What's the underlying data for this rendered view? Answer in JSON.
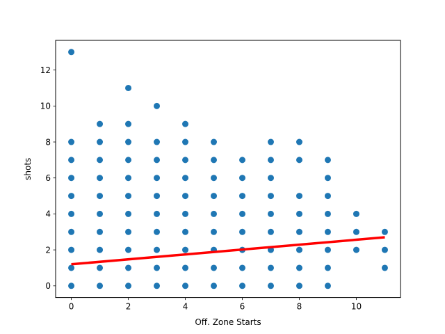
{
  "chart_data": {
    "type": "scatter",
    "title": "",
    "xlabel": "Off. Zone Starts",
    "ylabel": "shots",
    "xlim": [
      -0.55,
      11.55
    ],
    "ylim": [
      -0.65,
      13.65
    ],
    "xticks": [
      0,
      2,
      4,
      6,
      8,
      10
    ],
    "yticks": [
      0,
      2,
      4,
      6,
      8,
      10,
      12
    ],
    "grid": false,
    "marker_color": "#1f77b4",
    "line_color": "#ff0000",
    "points": {
      "0": [
        0,
        1,
        2,
        3,
        4,
        5,
        6,
        7,
        8,
        13
      ],
      "1": [
        0,
        1,
        2,
        3,
        4,
        5,
        6,
        7,
        8,
        9
      ],
      "2": [
        0,
        1,
        2,
        3,
        4,
        5,
        6,
        7,
        8,
        9,
        11
      ],
      "3": [
        0,
        1,
        2,
        3,
        4,
        5,
        6,
        7,
        8,
        10
      ],
      "4": [
        0,
        1,
        2,
        3,
        4,
        5,
        6,
        7,
        8,
        9
      ],
      "5": [
        0,
        1,
        2,
        3,
        4,
        5,
        6,
        7,
        8
      ],
      "6": [
        0,
        1,
        2,
        3,
        4,
        5,
        6,
        7
      ],
      "7": [
        0,
        1,
        2,
        3,
        4,
        5,
        6,
        7,
        8
      ],
      "8": [
        0,
        1,
        2,
        3,
        4,
        5,
        7,
        8
      ],
      "9": [
        0,
        1,
        2,
        3,
        4,
        5,
        6,
        7
      ],
      "10": [
        2,
        3,
        4
      ],
      "11": [
        1,
        2,
        3
      ]
    },
    "trend_line": {
      "x": [
        0,
        11
      ],
      "y": [
        1.2,
        2.7
      ]
    }
  }
}
